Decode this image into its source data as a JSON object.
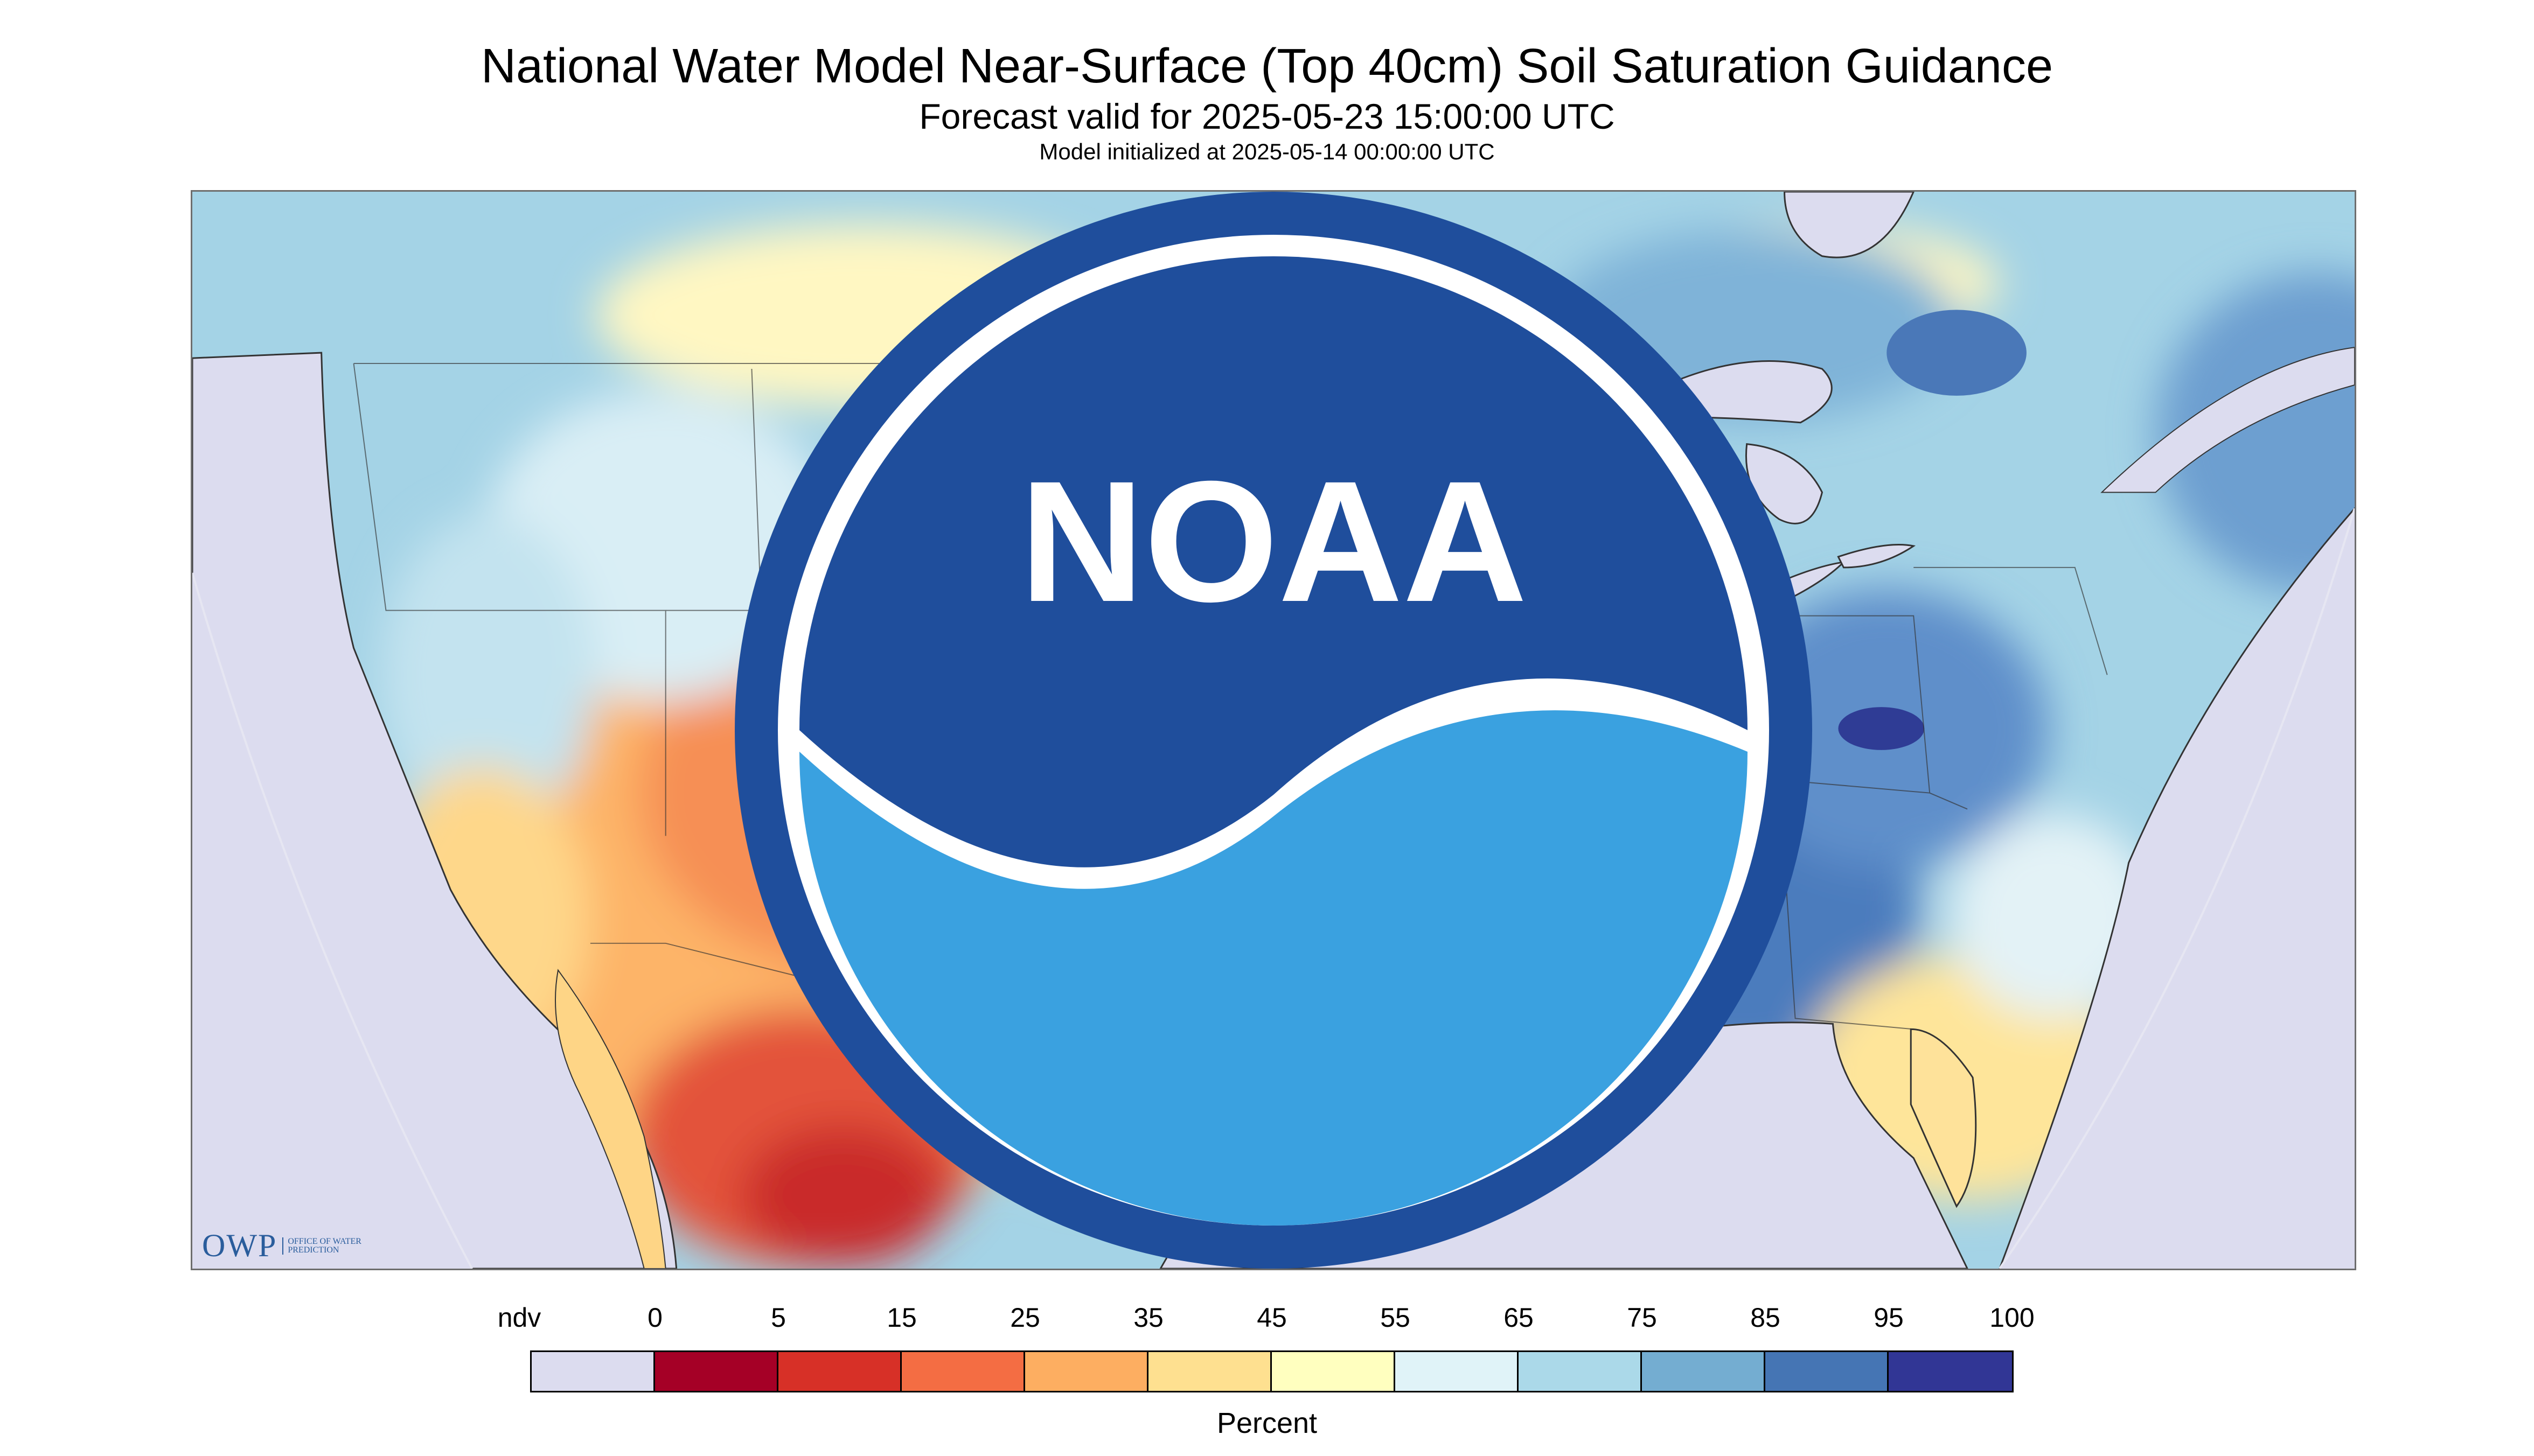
{
  "titles": {
    "main": "National Water Model Near-Surface (Top 40cm) Soil Saturation Guidance",
    "forecast": "Forecast valid for 2025-05-23 15:00:00 UTC",
    "init": "Model initialized at 2025-05-14 00:00:00 UTC"
  },
  "map": {
    "description_icons": [
      "owp-logo",
      "noaa-logo"
    ],
    "background_color": "#dcdcef",
    "owp": {
      "mark": "OWP",
      "sub": "Office of Water Prediction"
    }
  },
  "legend": {
    "labels": [
      "ndv",
      "0",
      "5",
      "15",
      "25",
      "35",
      "45",
      "55",
      "65",
      "75",
      "85",
      "95",
      "100"
    ],
    "colors": [
      "#dcdcef",
      "#a50026",
      "#d73027",
      "#f46d43",
      "#fdae61",
      "#fee090",
      "#ffffbf",
      "#e0f3f8",
      "#abd9e9",
      "#74add1",
      "#4575b4",
      "#313695"
    ],
    "unit": "Percent"
  }
}
